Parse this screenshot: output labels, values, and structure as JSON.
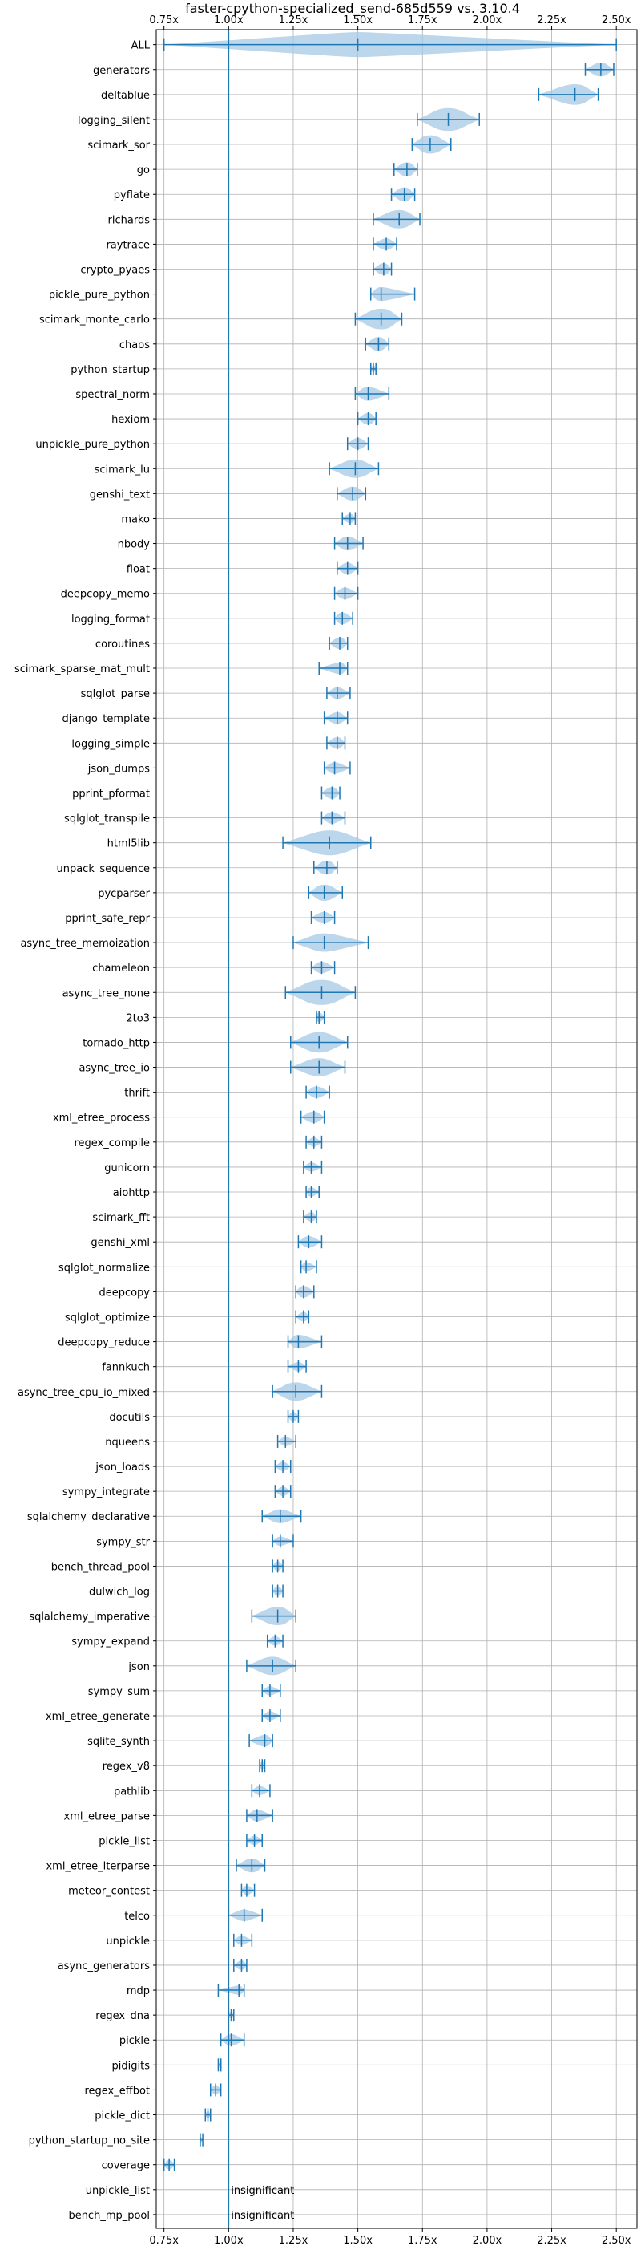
{
  "chart_data": {
    "type": "violin",
    "title": "faster-cpython-specialized_send-685d559 vs. 3.10.4",
    "xlabel": "",
    "ylabel": "",
    "xlim": [
      0.72,
      2.58
    ],
    "xticks": [
      0.75,
      1.0,
      1.25,
      1.5,
      1.75,
      2.0,
      2.25,
      2.5
    ],
    "xtick_labels": [
      "0.75x",
      "1.00x",
      "1.25x",
      "1.50x",
      "1.75x",
      "2.00x",
      "2.25x",
      "2.50x"
    ],
    "reference_line": 1.0,
    "grid": true,
    "colors": {
      "violin": "#a6c8e4",
      "marker": "#1f77b4",
      "grid": "#b0b0b0",
      "axis": "#000000"
    },
    "benchmarks": [
      {
        "name": "ALL",
        "min": 0.75,
        "median": 1.5,
        "max": 2.5,
        "spread": 0.09
      },
      {
        "name": "generators",
        "min": 2.38,
        "median": 2.44,
        "max": 2.49,
        "spread": 0.04
      },
      {
        "name": "deltablue",
        "min": 2.2,
        "median": 2.34,
        "max": 2.43,
        "spread": 0.07
      },
      {
        "name": "logging_silent",
        "min": 1.73,
        "median": 1.85,
        "max": 1.97,
        "spread": 0.08
      },
      {
        "name": "scimark_sor",
        "min": 1.71,
        "median": 1.78,
        "max": 1.86,
        "spread": 0.06
      },
      {
        "name": "go",
        "min": 1.64,
        "median": 1.69,
        "max": 1.73,
        "spread": 0.04
      },
      {
        "name": "pyflate",
        "min": 1.63,
        "median": 1.68,
        "max": 1.72,
        "spread": 0.04
      },
      {
        "name": "richards",
        "min": 1.56,
        "median": 1.66,
        "max": 1.74,
        "spread": 0.06
      },
      {
        "name": "raytrace",
        "min": 1.56,
        "median": 1.61,
        "max": 1.65,
        "spread": 0.03
      },
      {
        "name": "crypto_pyaes",
        "min": 1.56,
        "median": 1.6,
        "max": 1.63,
        "spread": 0.03
      },
      {
        "name": "pickle_pure_python",
        "min": 1.55,
        "median": 1.59,
        "max": 1.72,
        "spread": 0.04
      },
      {
        "name": "scimark_monte_carlo",
        "min": 1.49,
        "median": 1.59,
        "max": 1.67,
        "spread": 0.07
      },
      {
        "name": "chaos",
        "min": 1.53,
        "median": 1.58,
        "max": 1.62,
        "spread": 0.04
      },
      {
        "name": "python_startup",
        "min": 1.55,
        "median": 1.56,
        "max": 1.57,
        "spread": 0.01
      },
      {
        "name": "spectral_norm",
        "min": 1.49,
        "median": 1.54,
        "max": 1.62,
        "spread": 0.04
      },
      {
        "name": "hexiom",
        "min": 1.5,
        "median": 1.54,
        "max": 1.57,
        "spread": 0.03
      },
      {
        "name": "unpickle_pure_python",
        "min": 1.46,
        "median": 1.5,
        "max": 1.54,
        "spread": 0.03
      },
      {
        "name": "scimark_lu",
        "min": 1.39,
        "median": 1.49,
        "max": 1.58,
        "spread": 0.06
      },
      {
        "name": "genshi_text",
        "min": 1.42,
        "median": 1.48,
        "max": 1.53,
        "spread": 0.04
      },
      {
        "name": "mako",
        "min": 1.44,
        "median": 1.47,
        "max": 1.49,
        "spread": 0.02
      },
      {
        "name": "nbody",
        "min": 1.41,
        "median": 1.46,
        "max": 1.52,
        "spread": 0.04
      },
      {
        "name": "float",
        "min": 1.42,
        "median": 1.46,
        "max": 1.5,
        "spread": 0.03
      },
      {
        "name": "deepcopy_memo",
        "min": 1.41,
        "median": 1.45,
        "max": 1.5,
        "spread": 0.03
      },
      {
        "name": "logging_format",
        "min": 1.41,
        "median": 1.44,
        "max": 1.48,
        "spread": 0.03
      },
      {
        "name": "coroutines",
        "min": 1.39,
        "median": 1.43,
        "max": 1.46,
        "spread": 0.03
      },
      {
        "name": "scimark_sparse_mat_mult",
        "min": 1.35,
        "median": 1.43,
        "max": 1.46,
        "spread": 0.03
      },
      {
        "name": "sqlglot_parse",
        "min": 1.38,
        "median": 1.42,
        "max": 1.47,
        "spread": 0.03
      },
      {
        "name": "django_template",
        "min": 1.37,
        "median": 1.42,
        "max": 1.46,
        "spread": 0.03
      },
      {
        "name": "logging_simple",
        "min": 1.38,
        "median": 1.42,
        "max": 1.45,
        "spread": 0.03
      },
      {
        "name": "json_dumps",
        "min": 1.37,
        "median": 1.41,
        "max": 1.47,
        "spread": 0.03
      },
      {
        "name": "pprint_pformat",
        "min": 1.36,
        "median": 1.4,
        "max": 1.43,
        "spread": 0.03
      },
      {
        "name": "sqlglot_transpile",
        "min": 1.36,
        "median": 1.4,
        "max": 1.45,
        "spread": 0.03
      },
      {
        "name": "html5lib",
        "min": 1.21,
        "median": 1.39,
        "max": 1.55,
        "spread": 0.09
      },
      {
        "name": "unpack_sequence",
        "min": 1.33,
        "median": 1.38,
        "max": 1.42,
        "spread": 0.04
      },
      {
        "name": "pycparser",
        "min": 1.31,
        "median": 1.37,
        "max": 1.44,
        "spread": 0.05
      },
      {
        "name": "pprint_safe_repr",
        "min": 1.32,
        "median": 1.37,
        "max": 1.41,
        "spread": 0.03
      },
      {
        "name": "async_tree_memoization",
        "min": 1.25,
        "median": 1.37,
        "max": 1.54,
        "spread": 0.06
      },
      {
        "name": "chameleon",
        "min": 1.32,
        "median": 1.36,
        "max": 1.41,
        "spread": 0.03
      },
      {
        "name": "async_tree_none",
        "min": 1.22,
        "median": 1.36,
        "max": 1.49,
        "spread": 0.09
      },
      {
        "name": "2to3",
        "min": 1.34,
        "median": 1.35,
        "max": 1.37,
        "spread": 0.02
      },
      {
        "name": "tornado_http",
        "min": 1.24,
        "median": 1.35,
        "max": 1.46,
        "spread": 0.07
      },
      {
        "name": "async_tree_io",
        "min": 1.24,
        "median": 1.35,
        "max": 1.45,
        "spread": 0.06
      },
      {
        "name": "thrift",
        "min": 1.3,
        "median": 1.34,
        "max": 1.39,
        "spread": 0.03
      },
      {
        "name": "xml_etree_process",
        "min": 1.28,
        "median": 1.33,
        "max": 1.37,
        "spread": 0.03
      },
      {
        "name": "regex_compile",
        "min": 1.3,
        "median": 1.33,
        "max": 1.36,
        "spread": 0.02
      },
      {
        "name": "gunicorn",
        "min": 1.29,
        "median": 1.32,
        "max": 1.36,
        "spread": 0.02
      },
      {
        "name": "aiohttp",
        "min": 1.3,
        "median": 1.32,
        "max": 1.35,
        "spread": 0.02
      },
      {
        "name": "scimark_fft",
        "min": 1.29,
        "median": 1.32,
        "max": 1.34,
        "spread": 0.02
      },
      {
        "name": "genshi_xml",
        "min": 1.27,
        "median": 1.31,
        "max": 1.36,
        "spread": 0.03
      },
      {
        "name": "sqlglot_normalize",
        "min": 1.28,
        "median": 1.3,
        "max": 1.34,
        "spread": 0.02
      },
      {
        "name": "deepcopy",
        "min": 1.26,
        "median": 1.29,
        "max": 1.33,
        "spread": 0.03
      },
      {
        "name": "sqlglot_optimize",
        "min": 1.26,
        "median": 1.29,
        "max": 1.31,
        "spread": 0.02
      },
      {
        "name": "deepcopy_reduce",
        "min": 1.23,
        "median": 1.27,
        "max": 1.36,
        "spread": 0.04
      },
      {
        "name": "fannkuch",
        "min": 1.23,
        "median": 1.27,
        "max": 1.3,
        "spread": 0.02
      },
      {
        "name": "async_tree_cpu_io_mixed",
        "min": 1.17,
        "median": 1.26,
        "max": 1.36,
        "spread": 0.06
      },
      {
        "name": "docutils",
        "min": 1.23,
        "median": 1.25,
        "max": 1.27,
        "spread": 0.02
      },
      {
        "name": "nqueens",
        "min": 1.19,
        "median": 1.22,
        "max": 1.26,
        "spread": 0.02
      },
      {
        "name": "json_loads",
        "min": 1.18,
        "median": 1.21,
        "max": 1.24,
        "spread": 0.02
      },
      {
        "name": "sympy_integrate",
        "min": 1.18,
        "median": 1.21,
        "max": 1.24,
        "spread": 0.02
      },
      {
        "name": "sqlalchemy_declarative",
        "min": 1.13,
        "median": 1.2,
        "max": 1.28,
        "spread": 0.04
      },
      {
        "name": "sympy_str",
        "min": 1.17,
        "median": 1.2,
        "max": 1.25,
        "spread": 0.02
      },
      {
        "name": "bench_thread_pool",
        "min": 1.17,
        "median": 1.19,
        "max": 1.21,
        "spread": 0.02
      },
      {
        "name": "dulwich_log",
        "min": 1.17,
        "median": 1.19,
        "max": 1.21,
        "spread": 0.02
      },
      {
        "name": "sqlalchemy_imperative",
        "min": 1.09,
        "median": 1.19,
        "max": 1.26,
        "spread": 0.06
      },
      {
        "name": "sympy_expand",
        "min": 1.15,
        "median": 1.18,
        "max": 1.21,
        "spread": 0.02
      },
      {
        "name": "json",
        "min": 1.07,
        "median": 1.17,
        "max": 1.26,
        "spread": 0.06
      },
      {
        "name": "sympy_sum",
        "min": 1.13,
        "median": 1.16,
        "max": 1.2,
        "spread": 0.02
      },
      {
        "name": "xml_etree_generate",
        "min": 1.13,
        "median": 1.16,
        "max": 1.2,
        "spread": 0.02
      },
      {
        "name": "sqlite_synth",
        "min": 1.08,
        "median": 1.14,
        "max": 1.17,
        "spread": 0.03
      },
      {
        "name": "regex_v8",
        "min": 1.12,
        "median": 1.13,
        "max": 1.14,
        "spread": 0.01
      },
      {
        "name": "pathlib",
        "min": 1.09,
        "median": 1.12,
        "max": 1.16,
        "spread": 0.02
      },
      {
        "name": "xml_etree_parse",
        "min": 1.07,
        "median": 1.11,
        "max": 1.17,
        "spread": 0.03
      },
      {
        "name": "pickle_list",
        "min": 1.07,
        "median": 1.1,
        "max": 1.13,
        "spread": 0.02
      },
      {
        "name": "xml_etree_iterparse",
        "min": 1.03,
        "median": 1.09,
        "max": 1.14,
        "spread": 0.04
      },
      {
        "name": "meteor_contest",
        "min": 1.05,
        "median": 1.07,
        "max": 1.1,
        "spread": 0.02
      },
      {
        "name": "telco",
        "min": 1.0,
        "median": 1.06,
        "max": 1.13,
        "spread": 0.03
      },
      {
        "name": "unpickle",
        "min": 1.02,
        "median": 1.05,
        "max": 1.09,
        "spread": 0.02
      },
      {
        "name": "async_generators",
        "min": 1.02,
        "median": 1.05,
        "max": 1.07,
        "spread": 0.02
      },
      {
        "name": "mdp",
        "min": 0.96,
        "median": 1.04,
        "max": 1.06,
        "spread": 0.02
      },
      {
        "name": "regex_dna",
        "min": 1.0,
        "median": 1.01,
        "max": 1.02,
        "spread": 0.01
      },
      {
        "name": "pickle",
        "min": 0.97,
        "median": 1.01,
        "max": 1.06,
        "spread": 0.03
      },
      {
        "name": "pidigits",
        "min": 0.96,
        "median": 0.97,
        "max": 0.97,
        "spread": 0.005
      },
      {
        "name": "regex_effbot",
        "min": 0.93,
        "median": 0.95,
        "max": 0.97,
        "spread": 0.02
      },
      {
        "name": "pickle_dict",
        "min": 0.91,
        "median": 0.92,
        "max": 0.93,
        "spread": 0.01
      },
      {
        "name": "python_startup_no_site",
        "min": 0.89,
        "median": 0.89,
        "max": 0.9,
        "spread": 0.005
      },
      {
        "name": "coverage",
        "min": 0.75,
        "median": 0.77,
        "max": 0.79,
        "spread": 0.02
      },
      {
        "name": "unpickle_list",
        "note": "insignificant"
      },
      {
        "name": "bench_mp_pool",
        "note": "insignificant"
      }
    ]
  }
}
